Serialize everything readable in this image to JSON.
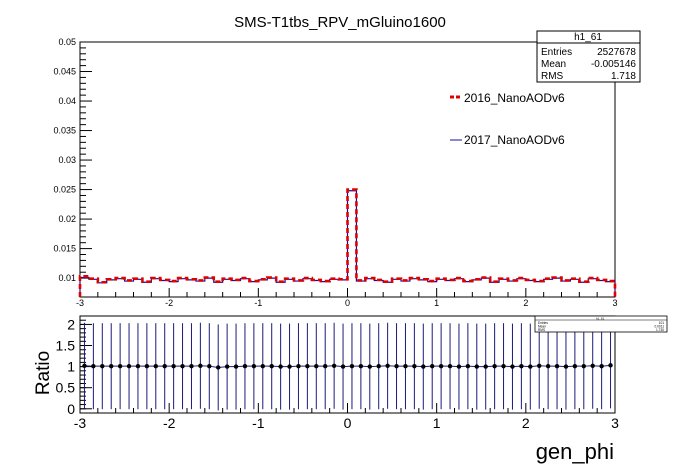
{
  "title": "SMS-T1tbs_RPV_mGluino1600",
  "colors": {
    "series_2016": "#e00000",
    "series_2017": "#1010a0",
    "ratio": "#1a1a7a",
    "marker": "#000000"
  },
  "stats_box": {
    "name": "h1_61",
    "rows": [
      {
        "label": "Entries",
        "value": "2527678"
      },
      {
        "label": "Mean",
        "value": "-0.005146"
      },
      {
        "label": "RMS",
        "value": "1.718"
      }
    ]
  },
  "stats_box_small": {
    "name": "h1_61",
    "rows": [
      {
        "label": "Entries",
        "value": "101"
      },
      {
        "label": "Mean",
        "value": "0.0011"
      },
      {
        "label": "RMS",
        "value": "1.730"
      }
    ]
  },
  "chart_data": [
    {
      "type": "line",
      "title": "SMS-T1tbs_RPV_mGluino1600",
      "xlabel": "",
      "ylabel": "",
      "xlim": [
        -3,
        3
      ],
      "ylim": [
        0.0068,
        0.05
      ],
      "bins": 60,
      "legend_position": "right",
      "y_ticks": [
        "0.01",
        "0.015",
        "0.02",
        "0.025",
        "0.03",
        "0.035",
        "0.04",
        "0.045",
        "0.05"
      ],
      "x_ticks": [
        "-3",
        "-2",
        "-1",
        "0",
        "1",
        "2",
        "3"
      ],
      "series": [
        {
          "name": "2016_NanoAODv6",
          "style": "dashed",
          "values": [
            0.0103,
            0.0099,
            0.0093,
            0.0098,
            0.01,
            0.0096,
            0.0099,
            0.0094,
            0.01,
            0.0097,
            0.0095,
            0.01,
            0.0098,
            0.0096,
            0.0101,
            0.0094,
            0.0099,
            0.0097,
            0.01,
            0.0095,
            0.0098,
            0.0101,
            0.0094,
            0.0099,
            0.0096,
            0.01,
            0.0097,
            0.0095,
            0.0099,
            0.0098,
            0.025,
            0.0096,
            0.01,
            0.0097,
            0.0094,
            0.0099,
            0.0096,
            0.01,
            0.0098,
            0.0095,
            0.0099,
            0.0097,
            0.01,
            0.0095,
            0.0098,
            0.0101,
            0.0094,
            0.0099,
            0.0096,
            0.01,
            0.0097,
            0.0095,
            0.0099,
            0.0101,
            0.0096,
            0.0099,
            0.0094,
            0.01,
            0.0097,
            0.0095
          ]
        },
        {
          "name": "2017_NanoAODv6",
          "style": "solid",
          "values": [
            0.0101,
            0.0098,
            0.0092,
            0.0097,
            0.0099,
            0.0095,
            0.0098,
            0.0093,
            0.0099,
            0.0096,
            0.0094,
            0.0099,
            0.0097,
            0.0095,
            0.01,
            0.0093,
            0.0098,
            0.0096,
            0.0099,
            0.0094,
            0.0097,
            0.01,
            0.0093,
            0.0098,
            0.0095,
            0.0099,
            0.0096,
            0.0094,
            0.0098,
            0.0097,
            0.0248,
            0.0095,
            0.0099,
            0.0096,
            0.0093,
            0.0098,
            0.0095,
            0.0099,
            0.0097,
            0.0094,
            0.0098,
            0.0096,
            0.0099,
            0.0094,
            0.0097,
            0.01,
            0.0093,
            0.0098,
            0.0095,
            0.0099,
            0.0096,
            0.0094,
            0.0098,
            0.01,
            0.0095,
            0.0098,
            0.0093,
            0.0099,
            0.0096,
            0.0094
          ]
        }
      ]
    },
    {
      "type": "scatter",
      "xlabel": "gen_phi",
      "ylabel": "Ratio",
      "xlim": [
        -3,
        3
      ],
      "ylim": [
        -0.1,
        2.2
      ],
      "y_ticks": [
        "0",
        "0.5",
        "1",
        "1.5",
        "2"
      ],
      "x_ticks": [
        "-3",
        "-2",
        "-1",
        "0",
        "1",
        "2",
        "3"
      ],
      "error_half_width": 1.02,
      "ratio_values": [
        1.02,
        1.01,
        1.01,
        1.01,
        1.01,
        1.01,
        1.01,
        1.01,
        1.01,
        1.01,
        1.01,
        1.01,
        1.01,
        1.02,
        1.01,
        0.98,
        1.0,
        1.0,
        1.01,
        1.01,
        1.01,
        1.01,
        1.0,
        1.0,
        1.01,
        1.01,
        1.01,
        1.01,
        1.02,
        1.0,
        1.01,
        1.01,
        1.0,
        1.01,
        1.02,
        1.01,
        1.01,
        1.01,
        1.0,
        1.01,
        1.01,
        1.01,
        1.0,
        1.01,
        1.0,
        1.0,
        1.01,
        1.01,
        1.0,
        1.01,
        1.0,
        1.02,
        1.01,
        1.01,
        1.0,
        1.01,
        1.01,
        1.02,
        1.01,
        1.03
      ]
    }
  ]
}
